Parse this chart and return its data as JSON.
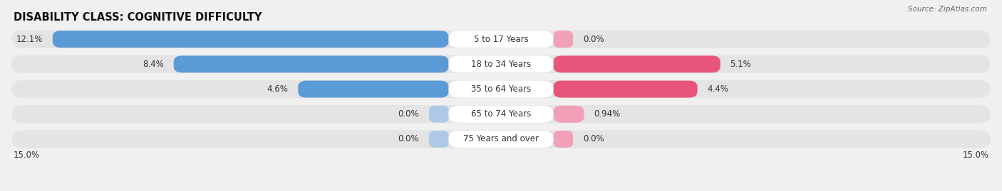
{
  "title": "DISABILITY CLASS: COGNITIVE DIFFICULTY",
  "source": "Source: ZipAtlas.com",
  "categories": [
    "5 to 17 Years",
    "18 to 34 Years",
    "35 to 64 Years",
    "65 to 74 Years",
    "75 Years and over"
  ],
  "male_values": [
    12.1,
    8.4,
    4.6,
    0.0,
    0.0
  ],
  "female_values": [
    0.0,
    5.1,
    4.4,
    0.94,
    0.0
  ],
  "male_color_dark": "#5b9bd5",
  "male_color_light": "#aec9e8",
  "female_color_dark": "#e9547a",
  "female_color_light": "#f2a0b8",
  "max_value": 15.0,
  "bg_color": "#f0f0f0",
  "row_bg_color": "#e4e4e4",
  "row_white_color": "#ffffff",
  "title_fontsize": 10.5,
  "label_fontsize": 8.5,
  "cat_fontsize": 8.5,
  "tick_fontsize": 8.5,
  "legend_fontsize": 8.5
}
